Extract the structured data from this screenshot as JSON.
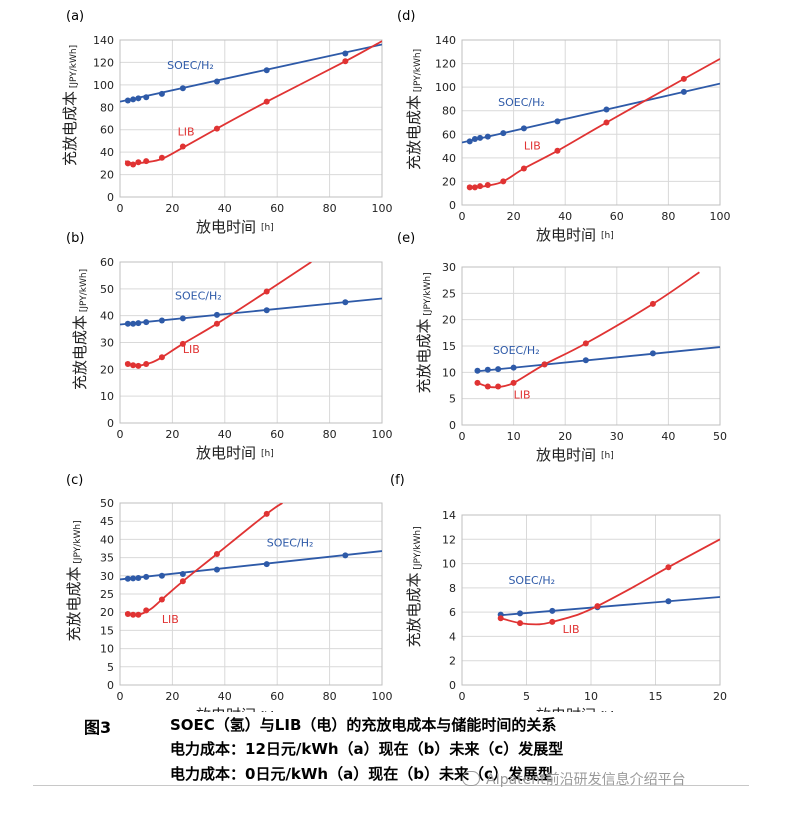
{
  "chart_data": [
    {
      "panel": "(a)",
      "type": "line",
      "xlabel": "放电时间",
      "xunit": "[h]",
      "ylabel": "充放电成本",
      "yunit": "[JPY/kWh]",
      "xlim": [
        0,
        100
      ],
      "ylim": [
        0,
        140
      ],
      "xticks": [
        0,
        20,
        40,
        60,
        80,
        100
      ],
      "yticks": [
        0,
        20,
        40,
        60,
        80,
        100,
        120,
        140
      ],
      "xtick_labels": [
        "0",
        "20",
        "40",
        "60",
        "80",
        "100"
      ],
      "ytick_labels": [
        "0",
        "20",
        "40",
        "60",
        "80",
        "100",
        "120",
        "140"
      ],
      "series": [
        {
          "name": "SOEC/H₂",
          "color": "#2e5aa8",
          "x": [
            3,
            5,
            7,
            10,
            16,
            24,
            37,
            56,
            86
          ],
          "y": [
            86,
            87,
            88,
            89,
            92,
            97,
            103,
            113,
            128
          ],
          "line": [
            [
              0,
              85
            ],
            [
              100,
              136
            ]
          ]
        },
        {
          "name": "LIB",
          "color": "#e03333",
          "x": [
            3,
            5,
            7,
            10,
            16,
            24,
            37,
            56,
            86
          ],
          "y": [
            30,
            29,
            31,
            32,
            35,
            45,
            61,
            85,
            121
          ],
          "curve": [
            [
              2,
              32
            ],
            [
              5,
              30
            ],
            [
              10,
              31
            ],
            [
              16,
              34
            ],
            [
              24,
              44
            ],
            [
              37,
              61
            ],
            [
              56,
              85
            ],
            [
              86,
              121
            ],
            [
              100,
              139
            ]
          ]
        }
      ],
      "labels": [
        {
          "text": "SOEC/H₂",
          "series": 0,
          "x": 18,
          "y": 114
        },
        {
          "text": "LIB",
          "series": 1,
          "x": 22,
          "y": 55
        }
      ]
    },
    {
      "panel": "(b)",
      "type": "line",
      "xlabel": "放电时间",
      "xunit": "[h]",
      "ylabel": "充放电成本",
      "yunit": "[JPY/kWh]",
      "xlim": [
        0,
        100
      ],
      "ylim": [
        0,
        60
      ],
      "xticks": [
        0,
        20,
        40,
        60,
        80,
        100
      ],
      "yticks": [
        0,
        10,
        20,
        30,
        40,
        50,
        60
      ],
      "xtick_labels": [
        "0",
        "20",
        "40",
        "60",
        "80",
        "100"
      ],
      "ytick_labels": [
        "0",
        "10",
        "20",
        "30",
        "40",
        "50",
        "60"
      ],
      "series": [
        {
          "name": "SOEC/H₂",
          "color": "#2e5aa8",
          "x": [
            3,
            5,
            7,
            10,
            16,
            24,
            37,
            56,
            86
          ],
          "y": [
            37,
            37,
            37.2,
            37.6,
            38.2,
            39,
            40.3,
            42,
            45
          ],
          "line": [
            [
              0,
              36.7
            ],
            [
              100,
              46.4
            ]
          ]
        },
        {
          "name": "LIB",
          "color": "#e03333",
          "x": [
            3,
            5,
            7,
            10,
            16,
            24,
            37,
            56
          ],
          "y": [
            22,
            21.5,
            21.3,
            22,
            24.5,
            29.5,
            37,
            49
          ],
          "curve": [
            [
              2,
              22.5
            ],
            [
              5,
              21.5
            ],
            [
              8,
              21.5
            ],
            [
              12,
              22.5
            ],
            [
              16,
              24.5
            ],
            [
              24,
              29.5
            ],
            [
              37,
              37
            ],
            [
              56,
              49
            ],
            [
              73,
              60
            ]
          ]
        }
      ],
      "labels": [
        {
          "text": "SOEC/H₂",
          "series": 0,
          "x": 21,
          "y": 46
        },
        {
          "text": "LIB",
          "series": 1,
          "x": 24,
          "y": 26
        }
      ]
    },
    {
      "panel": "(c)",
      "type": "line",
      "xlabel": "放电时间",
      "xunit": "[h]",
      "ylabel": "充放电成本",
      "yunit": "[JPY/kWh]",
      "xlim": [
        0,
        100
      ],
      "ylim": [
        0,
        50
      ],
      "xticks": [
        0,
        20,
        40,
        60,
        80,
        100
      ],
      "yticks": [
        0,
        5,
        10,
        15,
        20,
        25,
        30,
        35,
        40,
        45,
        50
      ],
      "xtick_labels": [
        "0",
        "20",
        "40",
        "60",
        "80",
        "100"
      ],
      "ytick_labels": [
        "0",
        "5",
        "10",
        "15",
        "20",
        "25",
        "30",
        "35",
        "40",
        "45",
        "50"
      ],
      "series": [
        {
          "name": "SOEC/H₂",
          "color": "#2e5aa8",
          "x": [
            3,
            5,
            7,
            10,
            16,
            24,
            37,
            56,
            86
          ],
          "y": [
            29.2,
            29.3,
            29.4,
            29.7,
            30,
            30.5,
            31.7,
            33.2,
            35.6
          ],
          "line": [
            [
              0,
              29
            ],
            [
              100,
              36.8
            ]
          ]
        },
        {
          "name": "LIB",
          "color": "#e03333",
          "x": [
            3,
            5,
            7,
            10,
            16,
            24,
            37,
            56
          ],
          "y": [
            19.5,
            19.3,
            19.3,
            20.5,
            23.5,
            28.5,
            36,
            47
          ],
          "curve": [
            [
              2,
              19.8
            ],
            [
              5,
              19.3
            ],
            [
              8,
              19.5
            ],
            [
              12,
              21
            ],
            [
              16,
              23.5
            ],
            [
              24,
              28.5
            ],
            [
              37,
              36
            ],
            [
              56,
              47
            ],
            [
              62,
              50
            ]
          ]
        }
      ],
      "labels": [
        {
          "text": "SOEC/H₂",
          "series": 0,
          "x": 56,
          "y": 38
        },
        {
          "text": "LIB",
          "series": 1,
          "x": 16,
          "y": 17
        }
      ]
    },
    {
      "panel": "(d)",
      "type": "line",
      "xlabel": "放电时间",
      "xunit": "[h]",
      "ylabel": "充放电成本",
      "yunit": "[JPY/kWh]",
      "xlim": [
        0,
        100
      ],
      "ylim": [
        0,
        140
      ],
      "xticks": [
        0,
        20,
        40,
        60,
        80,
        100
      ],
      "yticks": [
        0,
        20,
        40,
        60,
        80,
        100,
        120,
        140
      ],
      "xtick_labels": [
        "0",
        "20",
        "40",
        "60",
        "80",
        "100"
      ],
      "ytick_labels": [
        "0",
        "20",
        "40",
        "60",
        "80",
        "100",
        "120",
        "140"
      ],
      "series": [
        {
          "name": "SOEC/H₂",
          "color": "#2e5aa8",
          "x": [
            3,
            5,
            7,
            10,
            16,
            24,
            37,
            56,
            86
          ],
          "y": [
            54,
            56,
            57,
            58,
            61,
            65,
            71,
            81,
            96
          ],
          "line": [
            [
              0,
              53
            ],
            [
              100,
              103
            ]
          ]
        },
        {
          "name": "LIB",
          "color": "#e03333",
          "x": [
            3,
            5,
            7,
            10,
            16,
            24,
            37,
            56,
            86
          ],
          "y": [
            15,
            15,
            16,
            17,
            20,
            31,
            46,
            70,
            107
          ],
          "curve": [
            [
              2,
              16
            ],
            [
              5,
              15
            ],
            [
              10,
              16.5
            ],
            [
              16,
              20
            ],
            [
              24,
              31
            ],
            [
              37,
              46
            ],
            [
              56,
              70
            ],
            [
              86,
              107
            ],
            [
              100,
              124
            ]
          ]
        }
      ],
      "labels": [
        {
          "text": "SOEC/H₂",
          "series": 0,
          "x": 14,
          "y": 84
        },
        {
          "text": "LIB",
          "series": 1,
          "x": 24,
          "y": 47
        }
      ]
    },
    {
      "panel": "(e)",
      "type": "line",
      "xlabel": "放电时间",
      "xunit": "[h]",
      "ylabel": "充放电成本",
      "yunit": "[JPY/kWh]",
      "xlim": [
        0,
        50
      ],
      "ylim": [
        0,
        30
      ],
      "xticks": [
        0,
        10,
        20,
        30,
        40,
        50
      ],
      "yticks": [
        0,
        5,
        10,
        15,
        20,
        25,
        30
      ],
      "xtick_labels": [
        "0",
        "10",
        "20",
        "30",
        "40",
        "50"
      ],
      "ytick_labels": [
        "0",
        "5",
        "10",
        "15",
        "20",
        "25",
        "30"
      ],
      "series": [
        {
          "name": "SOEC/H₂",
          "color": "#2e5aa8",
          "x": [
            3,
            5,
            7,
            10,
            16,
            24,
            37
          ],
          "y": [
            10.3,
            10.5,
            10.6,
            10.9,
            11.5,
            12.3,
            13.6
          ],
          "line": [
            [
              3,
              10.2
            ],
            [
              50,
              14.8
            ]
          ]
        },
        {
          "name": "LIB",
          "color": "#e03333",
          "x": [
            3,
            5,
            7,
            10,
            16,
            24,
            37
          ],
          "y": [
            8,
            7.3,
            7.3,
            8,
            11.5,
            15.5,
            23
          ],
          "curve": [
            [
              3,
              8
            ],
            [
              5,
              7.3
            ],
            [
              7,
              7.2
            ],
            [
              10,
              8
            ],
            [
              16,
              11.5
            ],
            [
              24,
              15.5
            ],
            [
              37,
              23
            ],
            [
              46,
              29
            ]
          ]
        }
      ],
      "labels": [
        {
          "text": "SOEC/H₂",
          "series": 0,
          "x": 6,
          "y": 13.5
        },
        {
          "text": "LIB",
          "series": 1,
          "x": 10,
          "y": 5
        }
      ]
    },
    {
      "panel": "(f)",
      "type": "line",
      "xlabel": "放电时间",
      "xunit": "[h]",
      "ylabel": "充放电成本",
      "yunit": "[JPY/kWh]",
      "xlim": [
        0,
        20
      ],
      "ylim": [
        0,
        14
      ],
      "xticks": [
        0,
        5,
        10,
        15,
        20
      ],
      "yticks": [
        0,
        2,
        4,
        6,
        8,
        10,
        12,
        14
      ],
      "xtick_labels": [
        "0",
        "5",
        "10",
        "15",
        "20"
      ],
      "ytick_labels": [
        "0",
        "2",
        "4",
        "6",
        "8",
        "10",
        "12",
        "14"
      ],
      "series": [
        {
          "name": "SOEC/H₂",
          "color": "#2e5aa8",
          "x": [
            3,
            4.5,
            7,
            10.5,
            16
          ],
          "y": [
            5.8,
            5.9,
            6.1,
            6.4,
            6.9
          ],
          "line": [
            [
              3,
              5.75
            ],
            [
              20,
              7.25
            ]
          ]
        },
        {
          "name": "LIB",
          "color": "#e03333",
          "x": [
            3,
            4.5,
            7,
            10.5,
            16
          ],
          "y": [
            5.5,
            5.1,
            5.2,
            6.5,
            9.7
          ],
          "curve": [
            [
              3,
              5.5
            ],
            [
              4.5,
              5.1
            ],
            [
              6,
              5
            ],
            [
              7,
              5.2
            ],
            [
              9,
              5.8
            ],
            [
              10.5,
              6.5
            ],
            [
              13,
              7.9
            ],
            [
              16,
              9.7
            ],
            [
              20,
              12
            ]
          ]
        }
      ],
      "labels": [
        {
          "text": "SOEC/H₂",
          "series": 0,
          "x": 3.6,
          "y": 8.3
        },
        {
          "text": "LIB",
          "series": 1,
          "x": 7.8,
          "y": 4.3
        }
      ]
    }
  ],
  "caption": {
    "figure_number": "图3",
    "line1": "SOEC（氢）与LIB（电）的充放电成本与储能时间的关系",
    "line2": "电力成本：12日元/kWh（a）现在（b）未来（c）发展型",
    "line3": "电力成本：0日元/kWh（a）现在（b）未来（c）发展型"
  },
  "watermark": "AIpatent前沿研发信息介绍平台"
}
